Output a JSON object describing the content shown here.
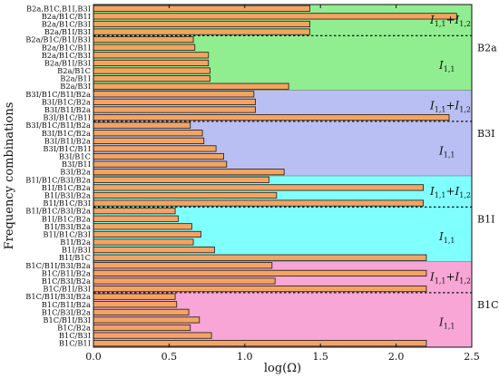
{
  "chart_data": {
    "type": "bar",
    "orientation": "horizontal",
    "xlabel": "log(Ω)",
    "ylabel": "Frequency combinations",
    "xlim": [
      0.0,
      2.5
    ],
    "xticks": [
      "0.0",
      "0.5",
      "1.0",
      "1.5",
      "2.0",
      "2.5"
    ],
    "bar_color": "#f4a460",
    "groups": [
      {
        "name": "B2a",
        "color": "#90ee90",
        "sub_labels": [
          "I1,1+I1,2",
          "I1,1"
        ],
        "categories": [
          "B2a,B1C,B1I,B3I",
          "B2a/B1C/B1I",
          "B2a/B1C/B3I",
          "B2a/B1I/B3I",
          "B2a/B1C/B1I/B3I",
          "B2a/B1C/B1I",
          "B2a/B1C/B3I",
          "B2a/B1I/B3I",
          "B2a/B1C",
          "B2a/B1I",
          "B2a/B3I"
        ],
        "values": [
          1.43,
          2.4,
          1.43,
          1.43,
          0.66,
          0.67,
          0.76,
          0.76,
          0.77,
          0.77,
          1.29
        ]
      },
      {
        "name": "B3I",
        "color": "#b9bff2",
        "sub_labels": [
          "I1,1+I1,2",
          "I1,1"
        ],
        "categories": [
          "B3I/B1C/B1I/B2a",
          "B3I/B1C/B2a",
          "B3I/B1I/B2a",
          "B3I/B1C/B1I",
          "B3I/B1C/B1I/B2a",
          "B3I/B1C/B2a",
          "B3I/B1I/B2a",
          "B3I/B1C/B1I",
          "B3I/B1C",
          "B3I/B1I",
          "B3I/B2a"
        ],
        "values": [
          1.06,
          1.07,
          1.07,
          2.35,
          0.64,
          0.72,
          0.73,
          0.81,
          0.86,
          0.88,
          1.26
        ]
      },
      {
        "name": "B1I",
        "color": "#80ffff",
        "sub_labels": [
          "I1,1+I1,2",
          "I1,1"
        ],
        "categories": [
          "B1I/B1C/B3I/B2a",
          "B1I/B1C/B2a",
          "B1I/B3I/B2a",
          "B1I/B1C/B3I",
          "B1I/B1C/B3I/B2a",
          "B1I/B1C/B2a",
          "B1I/B3I/B2a",
          "B1I/B1C/B3I",
          "B1I/B2a",
          "B1I/B3I",
          "B1I/B1C"
        ],
        "values": [
          1.16,
          2.18,
          1.21,
          2.18,
          0.54,
          0.56,
          0.65,
          0.71,
          0.66,
          0.8,
          2.2
        ]
      },
      {
        "name": "B1C",
        "color": "#f7a6d6",
        "sub_labels": [
          "I1,1+I1,2",
          "I1,1"
        ],
        "categories": [
          "B1C/B1I/B3I/B2a",
          "B1C/B1I/B2a",
          "B1C/B3I/B2a",
          "B1C/B1I/B3I",
          "B1C/B1I/B3I/B2a",
          "B1C/B1I/B2a",
          "B1C/B3I/B2a",
          "B1C/B1I/B3I",
          "B1C/B2a",
          "B1C/B3I",
          "B1C/B1I"
        ],
        "values": [
          1.18,
          2.2,
          1.2,
          2.2,
          0.54,
          0.55,
          0.63,
          0.7,
          0.64,
          0.78,
          2.2
        ]
      }
    ]
  }
}
